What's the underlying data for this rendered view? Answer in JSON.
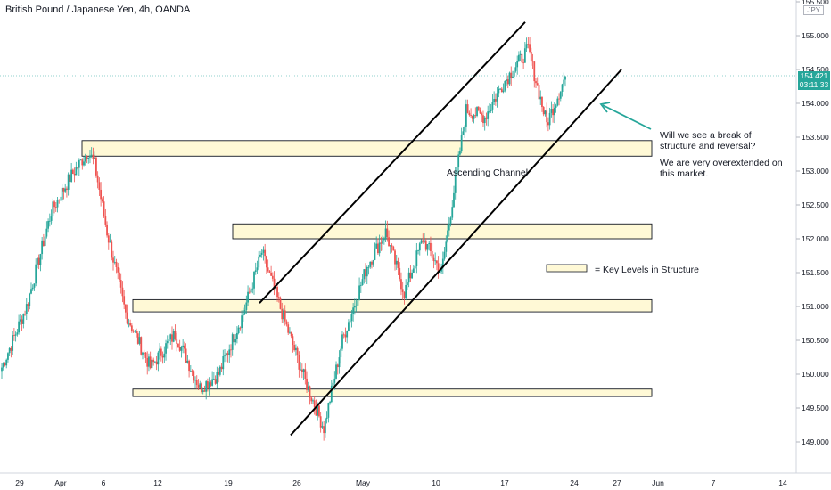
{
  "header": {
    "title": "British Pound / Japanese Yen, 4h, OANDA",
    "unit": "JPY"
  },
  "current_price": {
    "value": "154.421",
    "countdown": "03:11:33"
  },
  "annotations": {
    "channel_label": "Ascending Channel",
    "question_line1": "Will we see a break of",
    "question_line2": "structure and reversal?",
    "comment_line1": "We are very overextended on",
    "comment_line2": "this market.",
    "legend_text": "= Key Levels in Structure"
  },
  "colors": {
    "up": "#26a69a",
    "down": "#ef5350",
    "zone_fill": "#fff9d6",
    "arrow": "#26a69a"
  },
  "chart_data": {
    "type": "candlestick",
    "y_range": [
      148.75,
      155.65
    ],
    "y_ticks": [
      {
        "v": 155.5,
        "label": "155.500"
      },
      {
        "v": 155.0,
        "label": "155.000"
      },
      {
        "v": 154.5,
        "label": "154.500"
      },
      {
        "v": 154.0,
        "label": "154.000"
      },
      {
        "v": 153.5,
        "label": "153.500"
      },
      {
        "v": 153.0,
        "label": "153.000"
      },
      {
        "v": 152.5,
        "label": "152.500"
      },
      {
        "v": 152.0,
        "label": "152.000"
      },
      {
        "v": 151.5,
        "label": "151.500"
      },
      {
        "v": 151.0,
        "label": "151.000"
      },
      {
        "v": 150.5,
        "label": "150.500"
      },
      {
        "v": 150.0,
        "label": "150.000"
      },
      {
        "v": 149.5,
        "label": "149.500"
      },
      {
        "v": 149.0,
        "label": "149.000"
      }
    ],
    "x_ticks": [
      "29",
      "Apr",
      "6",
      "12",
      "19",
      "26",
      "May",
      "10",
      "17",
      "24",
      "27",
      "Jun",
      "7",
      "14"
    ],
    "key_levels": [
      {
        "low": 153.22,
        "high": 153.45
      },
      {
        "low": 152.0,
        "high": 152.22
      },
      {
        "low": 150.92,
        "high": 151.1
      },
      {
        "low": 149.67,
        "high": 149.78
      }
    ],
    "channel": {
      "upper": [
        {
          "v": 151.05
        },
        {
          "v": 155.2
        }
      ],
      "lower": [
        {
          "v": 149.1
        },
        {
          "v": 154.5
        }
      ]
    },
    "price_path": [
      150.1,
      151.0,
      152.4,
      152.9,
      153.3,
      153.1,
      152.1,
      150.9,
      150.1,
      150.6,
      149.8,
      150.0,
      150.9,
      151.8,
      150.7,
      149.9,
      149.2,
      150.5,
      151.6,
      152.1,
      151.2,
      152.0,
      151.5,
      153.9,
      153.8,
      154.3,
      154.8,
      153.7,
      154.4
    ],
    "price_path_counts": [
      4,
      4,
      3,
      3,
      1,
      2,
      3,
      4,
      4,
      4,
      3,
      4,
      3,
      4,
      3,
      3,
      3,
      4,
      3,
      3,
      3,
      3,
      4,
      3,
      3,
      4,
      3,
      3
    ]
  }
}
